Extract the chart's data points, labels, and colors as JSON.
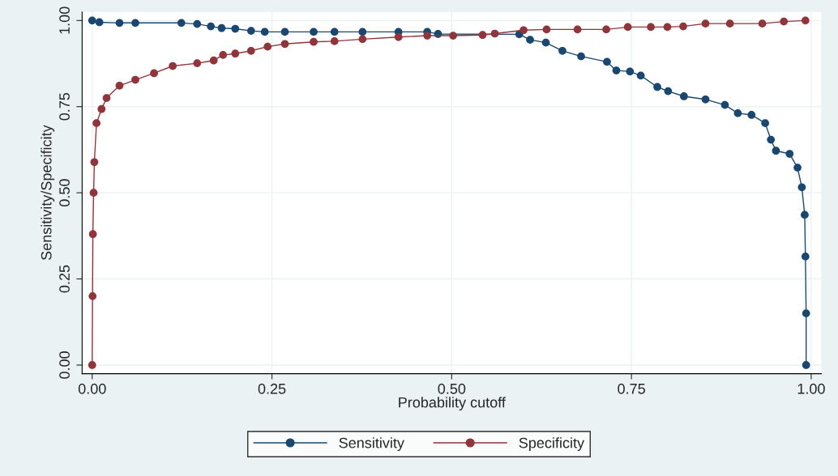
{
  "chart_data": {
    "type": "line",
    "xlabel": "Probability cutoff",
    "ylabel": "Sensitivity/Specificity",
    "xlim": [
      -0.014,
      1.014
    ],
    "ylim": [
      -0.025,
      1.025
    ],
    "xticks": [
      {
        "value": 0,
        "label": "0.00"
      },
      {
        "value": 0.25,
        "label": "0.25"
      },
      {
        "value": 0.5,
        "label": "0.50"
      },
      {
        "value": 0.75,
        "label": "0.75"
      },
      {
        "value": 1,
        "label": "1.00"
      }
    ],
    "yticks": [
      {
        "value": 0,
        "label": "0.00"
      },
      {
        "value": 0.25,
        "label": "0.25"
      },
      {
        "value": 0.5,
        "label": "0.50"
      },
      {
        "value": 0.75,
        "label": "0.75"
      },
      {
        "value": 1,
        "label": "1.00"
      }
    ],
    "grid": true,
    "legend": "bottom",
    "marker": "circle",
    "line_style": "solid",
    "series": [
      {
        "name": "Sensitivity",
        "color": "#1a476f",
        "x": [
          0.0,
          0.01,
          0.038,
          0.06,
          0.124,
          0.146,
          0.165,
          0.18,
          0.199,
          0.221,
          0.24,
          0.268,
          0.308,
          0.337,
          0.376,
          0.426,
          0.466,
          0.481,
          0.594,
          0.609,
          0.631,
          0.654,
          0.68,
          0.716,
          0.729,
          0.748,
          0.763,
          0.786,
          0.801,
          0.823,
          0.853,
          0.88,
          0.898,
          0.917,
          0.936,
          0.944,
          0.951,
          0.97,
          0.981,
          0.987,
          0.991,
          0.992,
          0.993,
          0.993
        ],
        "values": [
          1.0,
          0.995,
          0.993,
          0.993,
          0.993,
          0.99,
          0.983,
          0.978,
          0.976,
          0.97,
          0.967,
          0.967,
          0.967,
          0.967,
          0.967,
          0.967,
          0.967,
          0.961,
          0.96,
          0.944,
          0.936,
          0.912,
          0.896,
          0.88,
          0.855,
          0.852,
          0.84,
          0.807,
          0.795,
          0.78,
          0.771,
          0.755,
          0.731,
          0.726,
          0.702,
          0.654,
          0.622,
          0.613,
          0.573,
          0.516,
          0.436,
          0.315,
          0.15,
          0.0
        ]
      },
      {
        "name": "Specificity",
        "color": "#90353b",
        "x": [
          0.0,
          0.0005,
          0.001,
          0.002,
          0.003,
          0.006,
          0.013,
          0.02,
          0.038,
          0.06,
          0.086,
          0.112,
          0.146,
          0.169,
          0.182,
          0.199,
          0.221,
          0.244,
          0.268,
          0.308,
          0.337,
          0.376,
          0.426,
          0.466,
          0.502,
          0.543,
          0.56,
          0.6,
          0.632,
          0.675,
          0.715,
          0.745,
          0.777,
          0.8,
          0.822,
          0.853,
          0.887,
          0.932,
          0.962,
          0.992
        ],
        "values": [
          0.0,
          0.2,
          0.38,
          0.5,
          0.589,
          0.702,
          0.743,
          0.775,
          0.811,
          0.828,
          0.847,
          0.868,
          0.876,
          0.884,
          0.9,
          0.904,
          0.912,
          0.924,
          0.932,
          0.938,
          0.94,
          0.946,
          0.952,
          0.956,
          0.956,
          0.958,
          0.962,
          0.972,
          0.974,
          0.974,
          0.974,
          0.981,
          0.981,
          0.981,
          0.983,
          0.991,
          0.991,
          0.991,
          0.997,
          1.0
        ]
      }
    ]
  }
}
